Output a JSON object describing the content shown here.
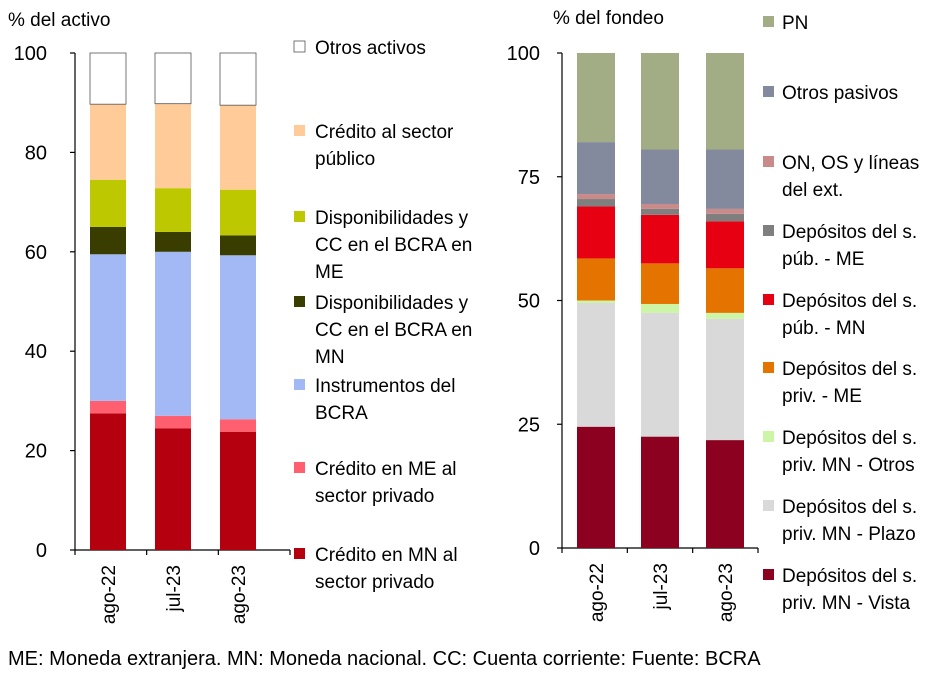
{
  "footnote": "ME: Moneda extranjera. MN: Moneda nacional. CC: Cuenta corriente: Fuente: BCRA",
  "chart_data": [
    {
      "type": "bar",
      "stacked": true,
      "ylabel": "% del activo",
      "ylim": [
        0,
        100
      ],
      "yticks": [
        0,
        20,
        40,
        60,
        80,
        100
      ],
      "categories": [
        "ago-22",
        "jul-23",
        "ago-23"
      ],
      "legend_position": "right",
      "series": [
        {
          "name": "Crédito en MN al sector privado",
          "color": "#b5000f",
          "values": [
            27.5,
            24.5,
            23.8
          ]
        },
        {
          "name": "Crédito en ME al sector privado",
          "color": "#ff5f6e",
          "values": [
            2.5,
            2.5,
            2.5
          ]
        },
        {
          "name": "Instrumentos del BCRA",
          "color": "#a3b9f5",
          "values": [
            29.5,
            33.0,
            33.0
          ]
        },
        {
          "name": "Disponibilidades y CC en el BCRA en MN",
          "color": "#393e00",
          "values": [
            5.5,
            4.0,
            4.0
          ]
        },
        {
          "name": "Disponibilidades y CC en el BCRA en ME",
          "color": "#bec800",
          "values": [
            9.5,
            8.8,
            9.2
          ]
        },
        {
          "name": "Crédito al sector público",
          "color": "#ffcc99",
          "values": [
            15.2,
            17.0,
            17.0
          ]
        },
        {
          "name": "Otros activos",
          "color": "#ffffff",
          "values": [
            10.3,
            10.2,
            10.5
          ]
        }
      ]
    },
    {
      "type": "bar",
      "stacked": true,
      "ylabel": "% del fondeo",
      "ylim": [
        0,
        100
      ],
      "yticks": [
        0,
        25,
        50,
        75,
        100
      ],
      "categories": [
        "ago-22",
        "jul-23",
        "ago-23"
      ],
      "legend_position": "right",
      "series": [
        {
          "name": "Depósitos del s. priv. MN - Vista",
          "color": "#8c0020",
          "values": [
            24.5,
            22.5,
            21.8
          ]
        },
        {
          "name": "Depósitos del s. priv. MN - Plazo",
          "color": "#d9d9d9",
          "values": [
            25.0,
            25.0,
            24.5
          ]
        },
        {
          "name": "Depósitos del s. priv. MN - Otros",
          "color": "#ccf5a6",
          "values": [
            0.5,
            1.8,
            1.2
          ]
        },
        {
          "name": "Depósitos del s. priv. - ME",
          "color": "#e57300",
          "values": [
            8.5,
            8.2,
            9.0
          ]
        },
        {
          "name": "Depósitos del s. púb. - MN",
          "color": "#e60012",
          "values": [
            10.5,
            9.8,
            9.5
          ]
        },
        {
          "name": "Depósitos del s. púb. - ME",
          "color": "#7f7f7f",
          "values": [
            1.5,
            1.2,
            1.5
          ]
        },
        {
          "name": "ON, OS y líneas del ext.",
          "color": "#c98a8a",
          "values": [
            1.0,
            1.0,
            1.0
          ]
        },
        {
          "name": "Otros pasivos",
          "color": "#848a9e",
          "values": [
            10.5,
            11.0,
            12.0
          ]
        },
        {
          "name": "PN",
          "color": "#a3ad85",
          "values": [
            18.0,
            19.5,
            19.5
          ]
        }
      ]
    }
  ]
}
